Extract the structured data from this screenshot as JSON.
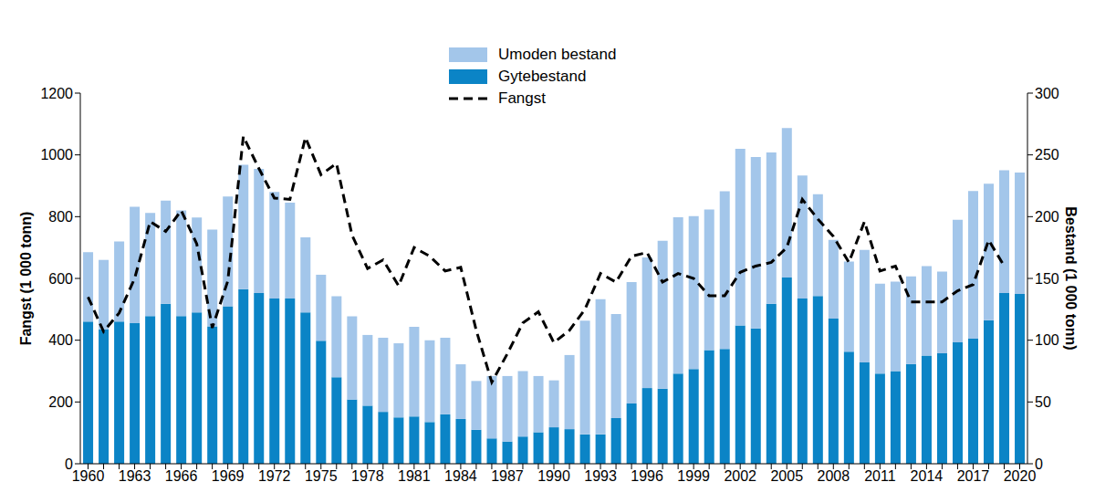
{
  "chart_data": {
    "type": "bar",
    "ylabel": "Fangst (1 000 tonn)",
    "y2label": "Bestand (1 000 tonn)",
    "categories": [
      "1960",
      null,
      null,
      "1963",
      null,
      null,
      "1966",
      null,
      null,
      "1969",
      null,
      null,
      "1972",
      null,
      null,
      "1975",
      null,
      null,
      "1978",
      null,
      null,
      "1981",
      null,
      null,
      "1984",
      null,
      null,
      "1987",
      null,
      null,
      "1990",
      null,
      null,
      "1993",
      null,
      null,
      "1996",
      null,
      null,
      "1999",
      null,
      null,
      "2002",
      null,
      null,
      "2005",
      null,
      null,
      "2008",
      null,
      null,
      "2011",
      null,
      null,
      "2014",
      null,
      null,
      "2017",
      null,
      null,
      "2020"
    ],
    "series": [
      {
        "name": "Gytebestand",
        "type": "bar",
        "color": "#0b84c6",
        "values": [
          460,
          435,
          460,
          455,
          478,
          518,
          478,
          490,
          445,
          510,
          565,
          553,
          535,
          535,
          490,
          398,
          280,
          208,
          188,
          168,
          150,
          153,
          135,
          160,
          145,
          110,
          82,
          72,
          88,
          102,
          118,
          112,
          95,
          95,
          148,
          195,
          245,
          243,
          292,
          307,
          368,
          372,
          448,
          438,
          518,
          603,
          535,
          543,
          470,
          363,
          328,
          292,
          300,
          323,
          350,
          358,
          393,
          405,
          465,
          553,
          550
        ]
      },
      {
        "name": "Umoden bestand",
        "type": "bar",
        "color": "#a3c6ea",
        "values": [
          225,
          225,
          260,
          377,
          334,
          334,
          342,
          307,
          313,
          355,
          403,
          402,
          345,
          310,
          243,
          214,
          262,
          269,
          229,
          240,
          240,
          290,
          265,
          248,
          177,
          158,
          202,
          212,
          212,
          182,
          152,
          240,
          368,
          438,
          337,
          393,
          423,
          479,
          506,
          495,
          455,
          510,
          572,
          555,
          490,
          484,
          398,
          330,
          255,
          292,
          364,
          291,
          290,
          284,
          290,
          264,
          397,
          478,
          442,
          397,
          393
        ]
      },
      {
        "name": "Fangst",
        "type": "line",
        "color": "#000000",
        "line_style": "dashed",
        "axis": "y2",
        "values": [
          135,
          107,
          122,
          150,
          196,
          188,
          205,
          178,
          110,
          148,
          265,
          239,
          215,
          214,
          264,
          234,
          243,
          185,
          158,
          165,
          144,
          175,
          168,
          156,
          159,
          108,
          66,
          89,
          114,
          123,
          98,
          108,
          125,
          154,
          147,
          168,
          171,
          147,
          154,
          150,
          136,
          136,
          155,
          160,
          163,
          175,
          214,
          198,
          184,
          163,
          196,
          156,
          160,
          131,
          131,
          131,
          140,
          145,
          181,
          160,
          null
        ]
      }
    ],
    "ylim": [
      0,
      1200
    ],
    "yticks": [
      0,
      200,
      400,
      600,
      800,
      1000,
      1200
    ],
    "y2lim": [
      0,
      300
    ],
    "y2ticks": [
      0,
      50,
      100,
      150,
      200,
      250,
      300
    ],
    "stacked": true,
    "grid": false,
    "legend": "top"
  }
}
